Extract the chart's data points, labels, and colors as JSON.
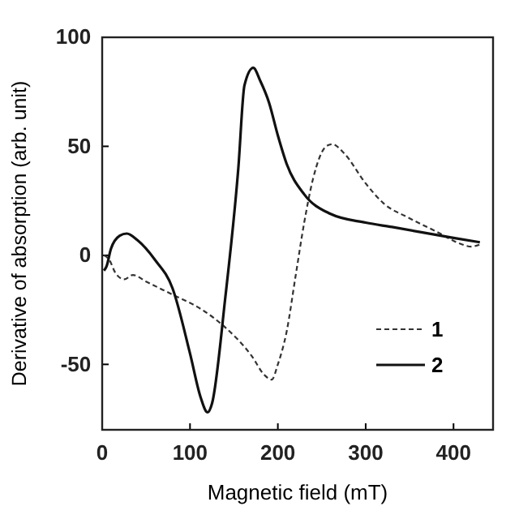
{
  "chart_data": {
    "type": "line",
    "xlabel": "Magnetic field (mT)",
    "ylabel": "Derivative of absorption (arb. unit)",
    "xlim": [
      0,
      445
    ],
    "ylim": [
      -80,
      100
    ],
    "xticks": [
      0,
      100,
      200,
      300,
      400
    ],
    "yticks": [
      -50,
      0,
      50,
      100
    ],
    "legend": "bottom right",
    "series": [
      {
        "name": "1",
        "color": "#333333",
        "line_style": "dashed",
        "x": [
          2,
          8,
          15,
          25,
          35,
          50,
          80,
          110,
          140,
          170,
          185,
          193,
          200,
          210,
          220,
          230,
          240,
          255,
          262,
          275,
          300,
          320,
          350,
          380,
          410,
          420,
          430
        ],
        "values": [
          0,
          -2,
          -8,
          -11,
          -9,
          -12,
          -18,
          -24,
          -33,
          -46,
          -55,
          -57,
          -50,
          -35,
          -10,
          15,
          35,
          50,
          51,
          47,
          33,
          24,
          17,
          11,
          5,
          4,
          5
        ]
      },
      {
        "name": "2",
        "color": "#111111",
        "line_style": "solid",
        "x": [
          2,
          5,
          10,
          20,
          28,
          40,
          60,
          80,
          100,
          112,
          120,
          125,
          140,
          155,
          162,
          172,
          180,
          190,
          200,
          210,
          230,
          260,
          300,
          330,
          400,
          430
        ],
        "values": [
          -7,
          -5,
          3,
          9,
          10,
          7,
          -2,
          -15,
          -45,
          -65,
          -72,
          -68,
          -20,
          40,
          78,
          86,
          80,
          70,
          55,
          42,
          28,
          19,
          15,
          13,
          8,
          6
        ]
      }
    ]
  }
}
